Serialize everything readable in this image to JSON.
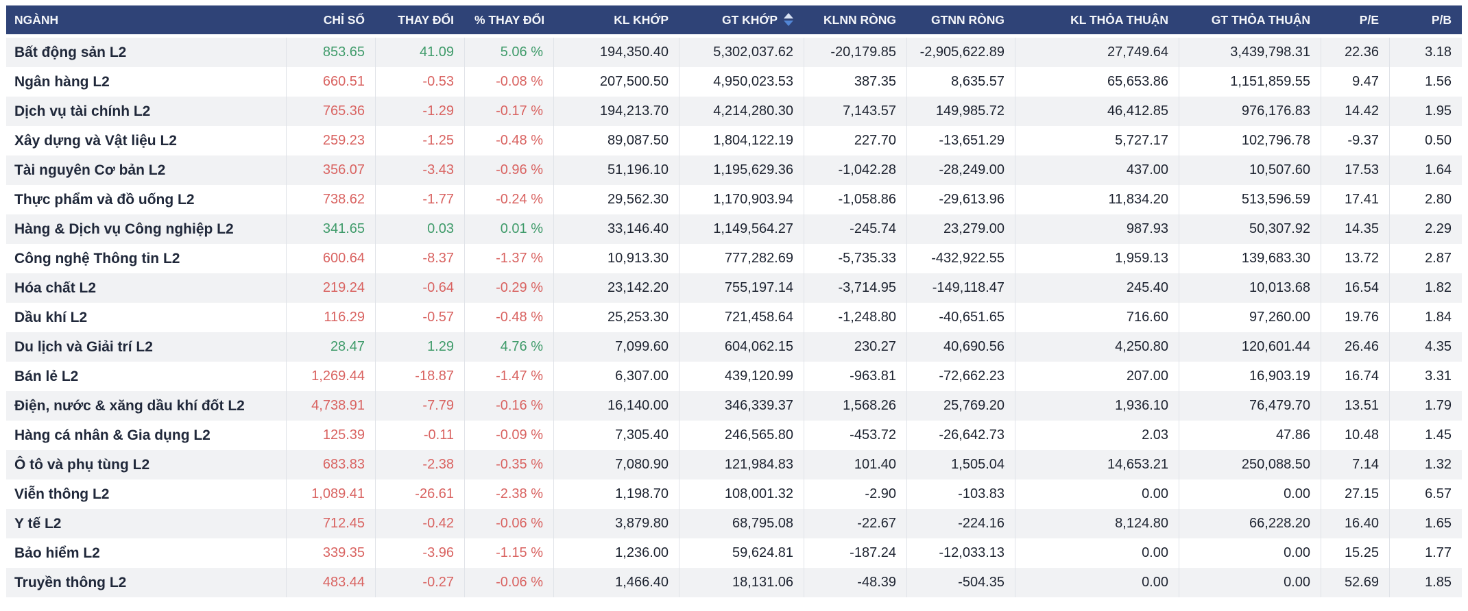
{
  "colors": {
    "header_bg": "#2f4377",
    "header_text": "#f4f6fa",
    "positive_text": "#3f9b6a",
    "negative_text": "#d96361",
    "neutral_text": "#1d2330",
    "row_stripe": "#f1f2f4",
    "divider": "#e0e3e8",
    "sort_icon_up": "#d9e2f4",
    "sort_icon_down": "#5286d6"
  },
  "table": {
    "columns": [
      {
        "key": "name",
        "label": "NGÀNH",
        "align": "left",
        "sorted": false
      },
      {
        "key": "chi_so",
        "label": "CHỈ SỐ",
        "align": "right",
        "sorted": false
      },
      {
        "key": "thay_doi",
        "label": "THAY ĐỔI",
        "align": "right",
        "sorted": false
      },
      {
        "key": "pct_thay_doi",
        "label": "% THAY ĐỔI",
        "align": "right",
        "sorted": false
      },
      {
        "key": "kl_khop",
        "label": "KL KHỚP",
        "align": "right",
        "sorted": false
      },
      {
        "key": "gt_khop",
        "label": "GT KHỚP",
        "align": "right",
        "sorted": true
      },
      {
        "key": "klnn_rong",
        "label": "KLNN RÒNG",
        "align": "right",
        "sorted": false
      },
      {
        "key": "gtnn_rong",
        "label": "GTNN RÒNG",
        "align": "right",
        "sorted": false
      },
      {
        "key": "kl_thoa_thuan",
        "label": "KL THỎA THUẬN",
        "align": "right",
        "sorted": false
      },
      {
        "key": "gt_thoa_thuan",
        "label": "GT THỎA THUẬN",
        "align": "right",
        "sorted": false
      },
      {
        "key": "pe",
        "label": "P/E",
        "align": "right",
        "sorted": false
      },
      {
        "key": "pb",
        "label": "P/B",
        "align": "right",
        "sorted": false
      }
    ],
    "rows": [
      {
        "name": "Bất động sản L2",
        "trend": "up",
        "chi_so": "853.65",
        "thay_doi": "41.09",
        "pct_thay_doi": "5.06 %",
        "kl_khop": "194,350.40",
        "gt_khop": "5,302,037.62",
        "klnn_rong": "-20,179.85",
        "gtnn_rong": "-2,905,622.89",
        "kl_thoa_thuan": "27,749.64",
        "gt_thoa_thuan": "3,439,798.31",
        "pe": "22.36",
        "pb": "3.18"
      },
      {
        "name": "Ngân hàng L2",
        "trend": "down",
        "chi_so": "660.51",
        "thay_doi": "-0.53",
        "pct_thay_doi": "-0.08 %",
        "kl_khop": "207,500.50",
        "gt_khop": "4,950,023.53",
        "klnn_rong": "387.35",
        "gtnn_rong": "8,635.57",
        "kl_thoa_thuan": "65,653.86",
        "gt_thoa_thuan": "1,151,859.55",
        "pe": "9.47",
        "pb": "1.56"
      },
      {
        "name": "Dịch vụ tài chính L2",
        "trend": "down",
        "chi_so": "765.36",
        "thay_doi": "-1.29",
        "pct_thay_doi": "-0.17 %",
        "kl_khop": "194,213.70",
        "gt_khop": "4,214,280.30",
        "klnn_rong": "7,143.57",
        "gtnn_rong": "149,985.72",
        "kl_thoa_thuan": "46,412.85",
        "gt_thoa_thuan": "976,176.83",
        "pe": "14.42",
        "pb": "1.95"
      },
      {
        "name": "Xây dựng và Vật liệu L2",
        "trend": "down",
        "chi_so": "259.23",
        "thay_doi": "-1.25",
        "pct_thay_doi": "-0.48 %",
        "kl_khop": "89,087.50",
        "gt_khop": "1,804,122.19",
        "klnn_rong": "227.70",
        "gtnn_rong": "-13,651.29",
        "kl_thoa_thuan": "5,727.17",
        "gt_thoa_thuan": "102,796.78",
        "pe": "-9.37",
        "pb": "0.50"
      },
      {
        "name": "Tài nguyên Cơ bản L2",
        "trend": "down",
        "chi_so": "356.07",
        "thay_doi": "-3.43",
        "pct_thay_doi": "-0.96 %",
        "kl_khop": "51,196.10",
        "gt_khop": "1,195,629.36",
        "klnn_rong": "-1,042.28",
        "gtnn_rong": "-28,249.00",
        "kl_thoa_thuan": "437.00",
        "gt_thoa_thuan": "10,507.60",
        "pe": "17.53",
        "pb": "1.64"
      },
      {
        "name": "Thực phẩm và đồ uống L2",
        "trend": "down",
        "chi_so": "738.62",
        "thay_doi": "-1.77",
        "pct_thay_doi": "-0.24 %",
        "kl_khop": "29,562.30",
        "gt_khop": "1,170,903.94",
        "klnn_rong": "-1,058.86",
        "gtnn_rong": "-29,613.96",
        "kl_thoa_thuan": "11,834.20",
        "gt_thoa_thuan": "513,596.59",
        "pe": "17.41",
        "pb": "2.80"
      },
      {
        "name": "Hàng & Dịch vụ Công nghiệp L2",
        "trend": "up",
        "chi_so": "341.65",
        "thay_doi": "0.03",
        "pct_thay_doi": "0.01 %",
        "kl_khop": "33,146.40",
        "gt_khop": "1,149,564.27",
        "klnn_rong": "-245.74",
        "gtnn_rong": "23,279.00",
        "kl_thoa_thuan": "987.93",
        "gt_thoa_thuan": "50,307.92",
        "pe": "14.35",
        "pb": "2.29"
      },
      {
        "name": "Công nghệ Thông tin L2",
        "trend": "down",
        "chi_so": "600.64",
        "thay_doi": "-8.37",
        "pct_thay_doi": "-1.37 %",
        "kl_khop": "10,913.30",
        "gt_khop": "777,282.69",
        "klnn_rong": "-5,735.33",
        "gtnn_rong": "-432,922.55",
        "kl_thoa_thuan": "1,959.13",
        "gt_thoa_thuan": "139,683.30",
        "pe": "13.72",
        "pb": "2.87"
      },
      {
        "name": "Hóa chất L2",
        "trend": "down",
        "chi_so": "219.24",
        "thay_doi": "-0.64",
        "pct_thay_doi": "-0.29 %",
        "kl_khop": "23,142.20",
        "gt_khop": "755,197.14",
        "klnn_rong": "-3,714.95",
        "gtnn_rong": "-149,118.47",
        "kl_thoa_thuan": "245.40",
        "gt_thoa_thuan": "10,013.68",
        "pe": "16.54",
        "pb": "1.82"
      },
      {
        "name": "Dầu khí L2",
        "trend": "down",
        "chi_so": "116.29",
        "thay_doi": "-0.57",
        "pct_thay_doi": "-0.48 %",
        "kl_khop": "25,253.30",
        "gt_khop": "721,458.64",
        "klnn_rong": "-1,248.80",
        "gtnn_rong": "-40,651.65",
        "kl_thoa_thuan": "716.60",
        "gt_thoa_thuan": "97,260.00",
        "pe": "19.76",
        "pb": "1.84"
      },
      {
        "name": "Du lịch và Giải trí L2",
        "trend": "up",
        "chi_so": "28.47",
        "thay_doi": "1.29",
        "pct_thay_doi": "4.76 %",
        "kl_khop": "7,099.60",
        "gt_khop": "604,062.15",
        "klnn_rong": "230.27",
        "gtnn_rong": "40,690.56",
        "kl_thoa_thuan": "4,250.80",
        "gt_thoa_thuan": "120,601.44",
        "pe": "26.46",
        "pb": "4.35"
      },
      {
        "name": "Bán lẻ L2",
        "trend": "down",
        "chi_so": "1,269.44",
        "thay_doi": "-18.87",
        "pct_thay_doi": "-1.47 %",
        "kl_khop": "6,307.00",
        "gt_khop": "439,120.99",
        "klnn_rong": "-963.81",
        "gtnn_rong": "-72,662.23",
        "kl_thoa_thuan": "207.00",
        "gt_thoa_thuan": "16,903.19",
        "pe": "16.74",
        "pb": "3.31"
      },
      {
        "name": "Điện, nước & xăng dầu khí đốt L2",
        "trend": "down",
        "chi_so": "4,738.91",
        "thay_doi": "-7.79",
        "pct_thay_doi": "-0.16 %",
        "kl_khop": "16,140.00",
        "gt_khop": "346,339.37",
        "klnn_rong": "1,568.26",
        "gtnn_rong": "25,769.20",
        "kl_thoa_thuan": "1,936.10",
        "gt_thoa_thuan": "76,479.70",
        "pe": "13.51",
        "pb": "1.79"
      },
      {
        "name": "Hàng cá nhân & Gia dụng L2",
        "trend": "down",
        "chi_so": "125.39",
        "thay_doi": "-0.11",
        "pct_thay_doi": "-0.09 %",
        "kl_khop": "7,305.40",
        "gt_khop": "246,565.80",
        "klnn_rong": "-453.72",
        "gtnn_rong": "-26,642.73",
        "kl_thoa_thuan": "2.03",
        "gt_thoa_thuan": "47.86",
        "pe": "10.48",
        "pb": "1.45"
      },
      {
        "name": "Ô tô và phụ tùng L2",
        "trend": "down",
        "chi_so": "683.83",
        "thay_doi": "-2.38",
        "pct_thay_doi": "-0.35 %",
        "kl_khop": "7,080.90",
        "gt_khop": "121,984.83",
        "klnn_rong": "101.40",
        "gtnn_rong": "1,505.04",
        "kl_thoa_thuan": "14,653.21",
        "gt_thoa_thuan": "250,088.50",
        "pe": "7.14",
        "pb": "1.32"
      },
      {
        "name": "Viễn thông L2",
        "trend": "down",
        "chi_so": "1,089.41",
        "thay_doi": "-26.61",
        "pct_thay_doi": "-2.38 %",
        "kl_khop": "1,198.70",
        "gt_khop": "108,001.32",
        "klnn_rong": "-2.90",
        "gtnn_rong": "-103.83",
        "kl_thoa_thuan": "0.00",
        "gt_thoa_thuan": "0.00",
        "pe": "27.15",
        "pb": "6.57"
      },
      {
        "name": "Y tế L2",
        "trend": "down",
        "chi_so": "712.45",
        "thay_doi": "-0.42",
        "pct_thay_doi": "-0.06 %",
        "kl_khop": "3,879.80",
        "gt_khop": "68,795.08",
        "klnn_rong": "-22.67",
        "gtnn_rong": "-224.16",
        "kl_thoa_thuan": "8,124.80",
        "gt_thoa_thuan": "66,228.20",
        "pe": "16.40",
        "pb": "1.65"
      },
      {
        "name": "Bảo hiểm L2",
        "trend": "down",
        "chi_so": "339.35",
        "thay_doi": "-3.96",
        "pct_thay_doi": "-1.15 %",
        "kl_khop": "1,236.00",
        "gt_khop": "59,624.81",
        "klnn_rong": "-187.24",
        "gtnn_rong": "-12,033.13",
        "kl_thoa_thuan": "0.00",
        "gt_thoa_thuan": "0.00",
        "pe": "15.25",
        "pb": "1.77"
      },
      {
        "name": "Truyền thông L2",
        "trend": "down",
        "chi_so": "483.44",
        "thay_doi": "-0.27",
        "pct_thay_doi": "-0.06 %",
        "kl_khop": "1,466.40",
        "gt_khop": "18,131.06",
        "klnn_rong": "-48.39",
        "gtnn_rong": "-504.35",
        "kl_thoa_thuan": "0.00",
        "gt_thoa_thuan": "0.00",
        "pe": "52.69",
        "pb": "1.85"
      }
    ]
  }
}
